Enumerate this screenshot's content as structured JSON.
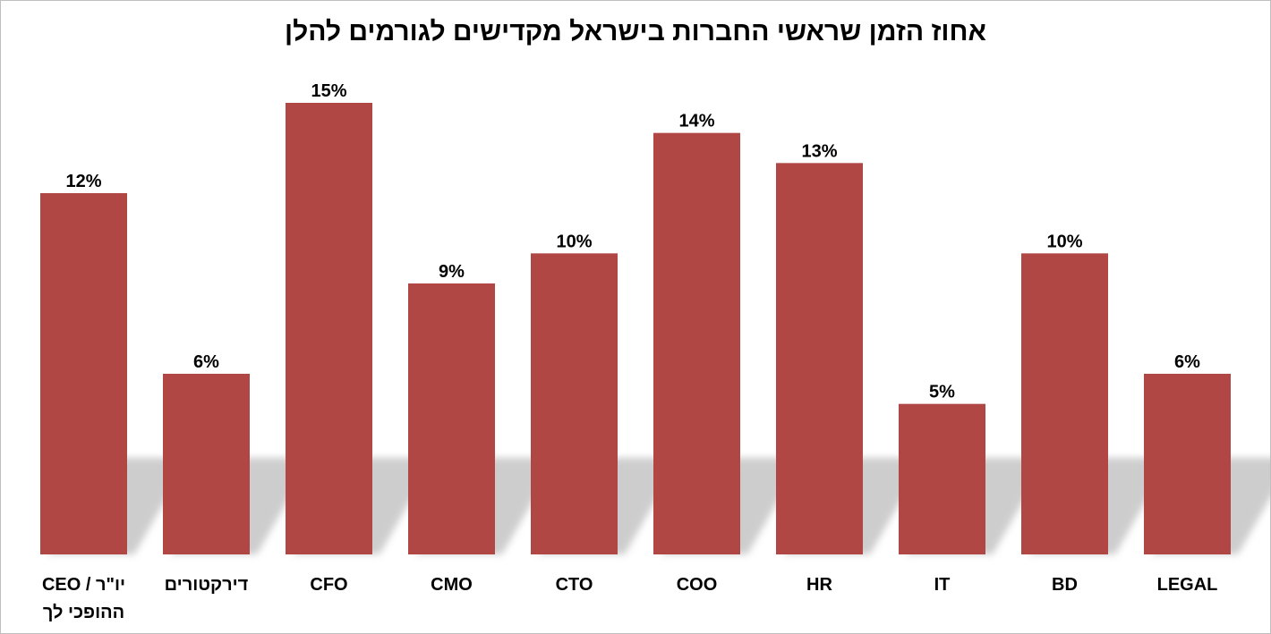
{
  "chart_data": {
    "type": "bar",
    "title": "אחוז הזמן שראשי החברות בישראל מקדישים לגורמים להלן",
    "xlabel": "",
    "ylabel": "",
    "categories": [
      [
        "CEO / יו\"ר",
        "ההופכי לך"
      ],
      [
        "דירקטורים"
      ],
      [
        "CFO"
      ],
      [
        "CMO"
      ],
      [
        "CTO"
      ],
      [
        "COO"
      ],
      [
        "HR"
      ],
      [
        "IT"
      ],
      [
        "BD"
      ],
      [
        "LEGAL"
      ]
    ],
    "values": [
      12,
      6,
      15,
      9,
      10,
      14,
      13,
      5,
      10,
      6
    ],
    "data_labels": [
      "12%",
      "6%",
      "15%",
      "9%",
      "10%",
      "14%",
      "13%",
      "5%",
      "10%",
      "6%"
    ],
    "ylim": [
      0,
      15
    ],
    "grid": false,
    "legend": "none",
    "bar_color": "#b04745"
  }
}
